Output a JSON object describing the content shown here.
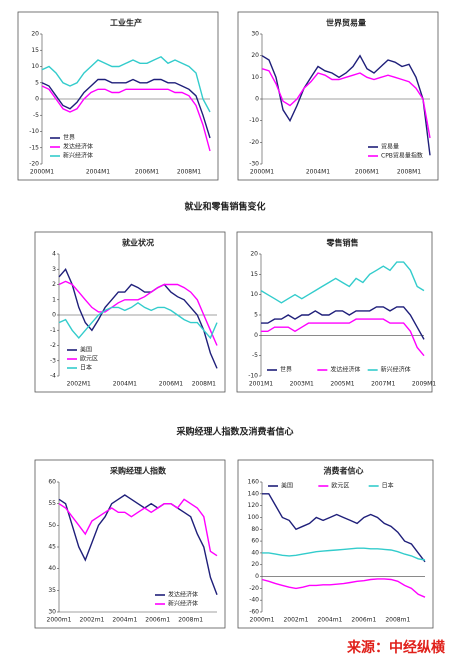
{
  "headings": [
    "就业和零售销售变化",
    "采购经理人指数及消费者信心"
  ],
  "source": "来源：中经纵横",
  "chart_data": [
    {
      "type": "line",
      "title": "工业生产",
      "legend": "lower left",
      "ylim": [
        -20,
        20
      ],
      "yticks": [
        -20,
        -15,
        -10,
        -5,
        0,
        5,
        10,
        15,
        20
      ],
      "categories": [
        "2000M1",
        null,
        null,
        null,
        null,
        null,
        null,
        null,
        "2004M1",
        null,
        null,
        null,
        null,
        null,
        null,
        "2006M1",
        null,
        null,
        null,
        null,
        null,
        "2008M1",
        null,
        null,
        null
      ],
      "series": [
        {
          "name": "世界",
          "color": "#1f1f7a",
          "values": [
            5,
            4,
            1,
            -2,
            -3,
            -1,
            2,
            4,
            6,
            6,
            5,
            5,
            5,
            6,
            5,
            5,
            6,
            6,
            5,
            5,
            4,
            3,
            1,
            -5,
            -12
          ]
        },
        {
          "name": "发达经济体",
          "color": "#ff00ff",
          "values": [
            4,
            3,
            0,
            -3,
            -4,
            -3,
            0,
            2,
            3,
            3,
            2,
            2,
            3,
            3,
            3,
            3,
            3,
            3,
            3,
            2,
            2,
            1,
            -2,
            -8,
            -16
          ]
        },
        {
          "name": "新兴经济体",
          "color": "#33cccc",
          "values": [
            9,
            10,
            8,
            5,
            4,
            5,
            8,
            10,
            12,
            11,
            10,
            10,
            11,
            12,
            11,
            11,
            12,
            13,
            11,
            12,
            11,
            10,
            8,
            0,
            -4
          ]
        }
      ]
    },
    {
      "type": "line",
      "title": "世界贸易量",
      "legend": "lower right",
      "ylim": [
        -30,
        30
      ],
      "yticks": [
        -30,
        -20,
        -10,
        0,
        10,
        20,
        30
      ],
      "categories": [
        "2000M1",
        null,
        null,
        null,
        null,
        null,
        null,
        null,
        "2004M1",
        null,
        null,
        null,
        null,
        null,
        null,
        "2006M1",
        null,
        null,
        null,
        null,
        null,
        "2008M1",
        null,
        null,
        null
      ],
      "series": [
        {
          "name": "贸易量",
          "color": "#1f1f7a",
          "values": [
            20,
            18,
            10,
            -5,
            -10,
            -3,
            5,
            10,
            15,
            13,
            12,
            10,
            12,
            15,
            20,
            14,
            12,
            15,
            18,
            17,
            15,
            16,
            10,
            0,
            -26
          ]
        },
        {
          "name": "CPB贸易量指数",
          "color": "#ff00ff",
          "values": [
            14,
            13,
            7,
            -1,
            -3,
            0,
            5,
            8,
            12,
            11,
            9,
            9,
            10,
            11,
            12,
            10,
            9,
            10,
            11,
            10,
            9,
            8,
            5,
            0,
            -18
          ]
        }
      ]
    },
    {
      "type": "line",
      "title": "就业状况",
      "legend": "lower left",
      "ylim": [
        -4,
        4
      ],
      "yticks": [
        -4,
        -3,
        -2,
        -1,
        0,
        1,
        2,
        3,
        4
      ],
      "categories": [
        null,
        null,
        null,
        "2002M1",
        null,
        null,
        null,
        null,
        null,
        null,
        "2004M1",
        null,
        null,
        null,
        null,
        null,
        null,
        "2006M1",
        null,
        null,
        null,
        null,
        "2008M1",
        null,
        null
      ],
      "series": [
        {
          "name": "美国",
          "color": "#1f1f7a",
          "values": [
            2.5,
            3,
            2,
            0.5,
            -0.5,
            -1,
            -0.3,
            0.5,
            1,
            1.5,
            1.5,
            2,
            1.8,
            1.5,
            1.5,
            1.8,
            2,
            1.5,
            1.2,
            1,
            0.5,
            0,
            -1,
            -2.5,
            -3.5
          ]
        },
        {
          "name": "欧元区",
          "color": "#ff00ff",
          "values": [
            2,
            2.2,
            2,
            1.5,
            1,
            0.5,
            0.2,
            0.2,
            0.5,
            0.8,
            1,
            1,
            1,
            1.2,
            1.5,
            1.8,
            2,
            2,
            2,
            1.8,
            1.5,
            1,
            0,
            -1,
            -2
          ]
        },
        {
          "name": "日本",
          "color": "#33cccc",
          "values": [
            -0.5,
            -0.3,
            -1,
            -1.5,
            -1,
            -0.5,
            0,
            0.3,
            0.5,
            0.5,
            0.3,
            0.5,
            0.8,
            0.5,
            0.3,
            0.5,
            0.5,
            0.3,
            0,
            -0.3,
            -0.5,
            -0.5,
            -1,
            -1.5,
            -0.5
          ]
        }
      ]
    },
    {
      "type": "line",
      "title": "零售销售",
      "legend": "lower center",
      "ylim": [
        -10,
        20
      ],
      "yticks": [
        -10,
        -5,
        0,
        5,
        10,
        15,
        20
      ],
      "categories": [
        "2001M1",
        null,
        null,
        null,
        null,
        null,
        "2003M1",
        null,
        null,
        null,
        null,
        null,
        "2005M1",
        null,
        null,
        null,
        null,
        null,
        "2007M1",
        null,
        null,
        null,
        null,
        null,
        "2009M1"
      ],
      "series": [
        {
          "name": "世界",
          "color": "#1f1f7a",
          "values": [
            3,
            3,
            4,
            4,
            5,
            4,
            5,
            5,
            6,
            5,
            5,
            6,
            6,
            5,
            6,
            6,
            6,
            7,
            7,
            6,
            7,
            7,
            5,
            2,
            -1
          ]
        },
        {
          "name": "发达经济体",
          "color": "#ff00ff",
          "values": [
            1,
            1,
            2,
            2,
            2,
            1,
            2,
            3,
            3,
            3,
            3,
            3,
            3,
            3,
            4,
            4,
            4,
            4,
            4,
            3,
            3,
            3,
            1,
            -3,
            -5
          ]
        },
        {
          "name": "新兴经济体",
          "color": "#33cccc",
          "values": [
            11,
            10,
            9,
            8,
            9,
            10,
            9,
            10,
            11,
            12,
            13,
            14,
            13,
            12,
            14,
            13,
            15,
            16,
            17,
            16,
            18,
            18,
            16,
            12,
            11
          ]
        }
      ]
    },
    {
      "type": "line",
      "title": "采购经理人指数",
      "legend": "lower right",
      "ylim": [
        30,
        60
      ],
      "yticks": [
        30,
        35,
        40,
        45,
        50,
        55,
        60
      ],
      "categories": [
        "2000m1",
        null,
        null,
        null,
        null,
        "2002m1",
        null,
        null,
        null,
        null,
        "2004m1",
        null,
        null,
        null,
        null,
        "2006m1",
        null,
        null,
        null,
        null,
        "2008m1",
        null,
        null,
        null,
        null
      ],
      "series": [
        {
          "name": "发达经济体",
          "color": "#1f1f7a",
          "values": [
            56,
            55,
            50,
            45,
            42,
            46,
            50,
            52,
            55,
            56,
            57,
            56,
            55,
            54,
            55,
            54,
            55,
            55,
            54,
            53,
            52,
            48,
            45,
            38,
            34
          ]
        },
        {
          "name": "新兴经济体",
          "color": "#ff00ff",
          "values": [
            55,
            54,
            52,
            50,
            48,
            51,
            52,
            53,
            54,
            53,
            53,
            52,
            53,
            54,
            53,
            54,
            55,
            55,
            54,
            56,
            55,
            54,
            52,
            44,
            43
          ]
        }
      ]
    },
    {
      "type": "line",
      "title": "消费者信心",
      "legend": "upper center",
      "ylim": [
        -60,
        160
      ],
      "yticks": [
        -60,
        -40,
        -20,
        0,
        20,
        40,
        60,
        80,
        100,
        120,
        140,
        160
      ],
      "categories": [
        "2000m1",
        null,
        null,
        null,
        null,
        "2002m1",
        null,
        null,
        null,
        null,
        "2004m1",
        null,
        null,
        null,
        null,
        "2006m1",
        null,
        null,
        null,
        null,
        "2008m1",
        null,
        null,
        null,
        null
      ],
      "series": [
        {
          "name": "美国",
          "color": "#1f1f7a",
          "values": [
            140,
            140,
            120,
            100,
            95,
            80,
            85,
            90,
            100,
            95,
            100,
            105,
            100,
            95,
            90,
            100,
            105,
            100,
            90,
            85,
            75,
            60,
            55,
            40,
            25
          ]
        },
        {
          "name": "欧元区",
          "color": "#ff00ff",
          "values": [
            -5,
            -8,
            -12,
            -15,
            -18,
            -20,
            -18,
            -15,
            -15,
            -14,
            -14,
            -13,
            -12,
            -10,
            -8,
            -7,
            -5,
            -4,
            -4,
            -5,
            -8,
            -15,
            -20,
            -30,
            -35
          ]
        },
        {
          "name": "日本",
          "color": "#33cccc",
          "values": [
            40,
            40,
            38,
            36,
            35,
            36,
            38,
            40,
            42,
            43,
            44,
            45,
            46,
            47,
            48,
            48,
            47,
            47,
            46,
            45,
            42,
            38,
            35,
            30,
            28
          ]
        }
      ]
    }
  ]
}
